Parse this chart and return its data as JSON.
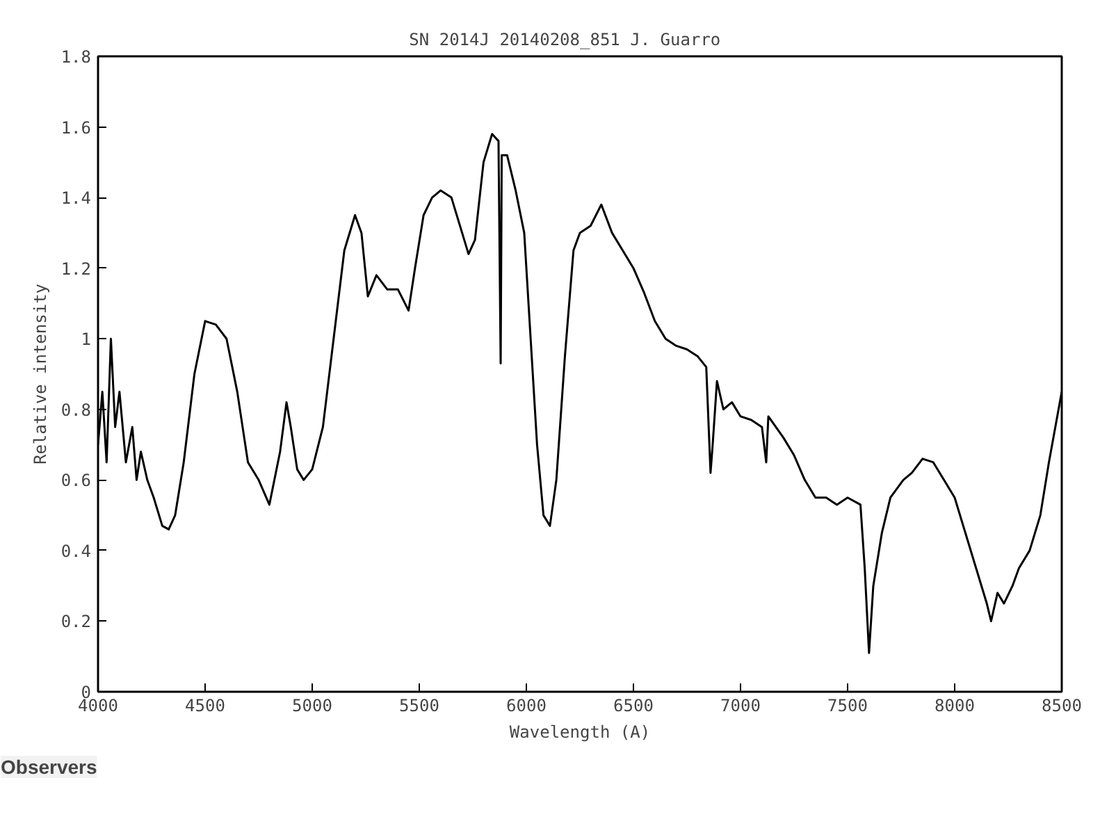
{
  "chart_data": {
    "type": "line",
    "title": "SN 2014J    20140208_851 J. Guarro",
    "xlabel": "Wavelength (A)",
    "ylabel": "Relative intensity",
    "annotations": [
      "Observers"
    ],
    "x": [
      4000,
      4020,
      4040,
      4060,
      4080,
      4100,
      4130,
      4160,
      4180,
      4200,
      4230,
      4260,
      4300,
      4330,
      4360,
      4400,
      4450,
      4500,
      4550,
      4600,
      4650,
      4700,
      4750,
      4800,
      4850,
      4880,
      4900,
      4930,
      4960,
      5000,
      5050,
      5100,
      5150,
      5200,
      5230,
      5260,
      5300,
      5350,
      5400,
      5450,
      5480,
      5520,
      5560,
      5600,
      5650,
      5700,
      5730,
      5760,
      5800,
      5840,
      5870,
      5880,
      5885,
      5910,
      5950,
      5990,
      6020,
      6050,
      6080,
      6110,
      6140,
      6180,
      6220,
      6250,
      6300,
      6350,
      6400,
      6450,
      6500,
      6550,
      6600,
      6650,
      6700,
      6750,
      6800,
      6840,
      6860,
      6870,
      6890,
      6920,
      6960,
      7000,
      7050,
      7100,
      7120,
      7130,
      7200,
      7250,
      7300,
      7350,
      7400,
      7450,
      7500,
      7560,
      7580,
      7600,
      7620,
      7660,
      7700,
      7760,
      7800,
      7850,
      7900,
      7950,
      8000,
      8050,
      8100,
      8150,
      8170,
      8200,
      8230,
      8270,
      8300,
      8350,
      8400,
      8440,
      8470,
      8500
    ],
    "series": [
      {
        "color": "#000000",
        "values": [
          0.7,
          0.85,
          0.65,
          1.0,
          0.75,
          0.85,
          0.65,
          0.75,
          0.6,
          0.68,
          0.6,
          0.55,
          0.47,
          0.46,
          0.5,
          0.65,
          0.9,
          1.05,
          1.04,
          1.0,
          0.85,
          0.65,
          0.6,
          0.53,
          0.68,
          0.82,
          0.75,
          0.63,
          0.6,
          0.63,
          0.75,
          1.0,
          1.25,
          1.35,
          1.3,
          1.12,
          1.18,
          1.14,
          1.14,
          1.08,
          1.2,
          1.35,
          1.4,
          1.42,
          1.4,
          1.3,
          1.24,
          1.28,
          1.5,
          1.58,
          1.56,
          0.93,
          1.52,
          1.52,
          1.42,
          1.3,
          1.0,
          0.7,
          0.5,
          0.47,
          0.6,
          0.95,
          1.25,
          1.3,
          1.32,
          1.38,
          1.3,
          1.25,
          1.2,
          1.13,
          1.05,
          1.0,
          0.98,
          0.97,
          0.95,
          0.92,
          0.62,
          0.7,
          0.88,
          0.8,
          0.82,
          0.78,
          0.77,
          0.75,
          0.65,
          0.78,
          0.72,
          0.67,
          0.6,
          0.55,
          0.55,
          0.53,
          0.55,
          0.53,
          0.35,
          0.11,
          0.3,
          0.45,
          0.55,
          0.6,
          0.62,
          0.66,
          0.65,
          0.6,
          0.55,
          0.45,
          0.35,
          0.25,
          0.2,
          0.28,
          0.25,
          0.3,
          0.35,
          0.4,
          0.5,
          0.65,
          0.75,
          0.85
        ]
      }
    ],
    "xlim": [
      4000,
      8500
    ],
    "xticks": [
      4000,
      4500,
      5000,
      5500,
      6000,
      6500,
      7000,
      7500,
      8000,
      8500
    ],
    "ylim": [
      0,
      1.8
    ],
    "yticks": [
      0,
      0.2,
      0.4,
      0.6,
      0.8,
      1,
      1.2,
      1.4,
      1.6,
      1.8
    ],
    "grid": false,
    "marker": "none",
    "line_style": "solid"
  }
}
